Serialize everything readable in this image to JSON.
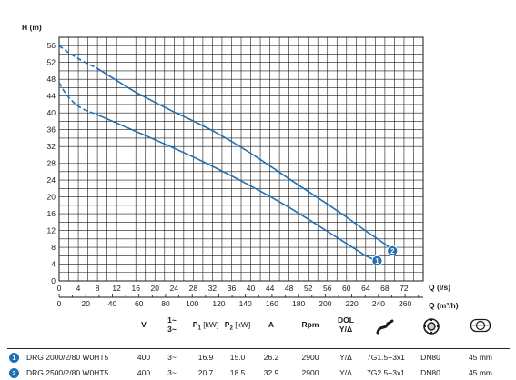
{
  "chart_data": {
    "type": "line",
    "ylabel": "H (m)",
    "xlabel": "Q (l/s)",
    "x2label": "Q (m³/h)",
    "xlim": [
      0,
      76
    ],
    "ylim": [
      0,
      58
    ],
    "x_ticks": [
      0,
      4,
      8,
      12,
      16,
      20,
      24,
      28,
      32,
      36,
      40,
      44,
      48,
      52,
      56,
      60,
      64,
      68,
      72
    ],
    "y_ticks": [
      0,
      4,
      8,
      12,
      16,
      20,
      24,
      28,
      32,
      36,
      40,
      44,
      48,
      52,
      56
    ],
    "x2_ticks": [
      0,
      20,
      40,
      60,
      80,
      100,
      120,
      140,
      160,
      180,
      200,
      220,
      240,
      260
    ],
    "grid": true,
    "series": [
      {
        "name": "1",
        "color": "#1f6fb4",
        "dashed": {
          "x": [
            0,
            1,
            2,
            3,
            4,
            5,
            6,
            7.7
          ],
          "y": [
            47.2,
            45.2,
            43.7,
            42.5,
            41.6,
            40.9,
            40.4,
            39.7
          ]
        },
        "solid": {
          "x": [
            7.7,
            12,
            16,
            20,
            24,
            28,
            32,
            36,
            40,
            44,
            48,
            52,
            56,
            60,
            64,
            66.2
          ],
          "y": [
            39.7,
            37.6,
            35.6,
            33.6,
            31.6,
            29.5,
            27.3,
            25.0,
            22.6,
            20.1,
            17.5,
            14.7,
            11.8,
            8.9,
            6.0,
            4.8
          ]
        }
      },
      {
        "name": "2",
        "color": "#1f6fb4",
        "dashed": {
          "x": [
            0,
            1.5,
            3,
            4.5,
            6,
            7.8
          ],
          "y": [
            56.0,
            54.7,
            53.6,
            52.6,
            51.7,
            50.7
          ]
        },
        "solid": {
          "x": [
            7.8,
            12,
            16,
            20,
            24,
            28,
            32,
            36,
            40,
            44,
            48,
            52,
            56,
            60,
            64,
            67,
            69.2
          ],
          "y": [
            50.7,
            47.7,
            44.9,
            42.5,
            40.2,
            38.1,
            35.8,
            33.2,
            30.4,
            27.4,
            24.3,
            21.3,
            18.3,
            15.2,
            11.9,
            9.6,
            7.8
          ]
        }
      }
    ]
  },
  "table": {
    "headers": {
      "v": "V",
      "phase_top": "1~",
      "phase_bottom": "3~",
      "p1": "P",
      "p1_sub": "1",
      "p1_unit": "[kW]",
      "p2": "P",
      "p2_sub": "2",
      "p2_unit": "[kW]",
      "a": "A",
      "rpm": "Rpm",
      "dol_top": "DOL",
      "dol_bottom": "Y/Δ",
      "cable_icon": "cable-icon",
      "outlet_icon": "outlet-flange-icon",
      "solids_icon": "solids-passage-icon"
    },
    "rows": [
      {
        "num": "1",
        "model": "DRG 2000/2/80 W0HT5",
        "v": "400",
        "phase": "3~",
        "p1": "16.9",
        "p2": "15.0",
        "a": "26.2",
        "rpm": "2900",
        "dol": "Y/Δ",
        "cable": "7G1.5+3x1",
        "outlet": "DN80",
        "solids": "45 mm"
      },
      {
        "num": "2",
        "model": "DRG 2500/2/80 W0HT5",
        "v": "400",
        "phase": "3~",
        "p1": "20.7",
        "p2": "18.5",
        "a": "32.9",
        "rpm": "2900",
        "dol": "Y/Δ",
        "cable": "7G2.5+3x1",
        "outlet": "DN80",
        "solids": "45 mm"
      }
    ]
  }
}
